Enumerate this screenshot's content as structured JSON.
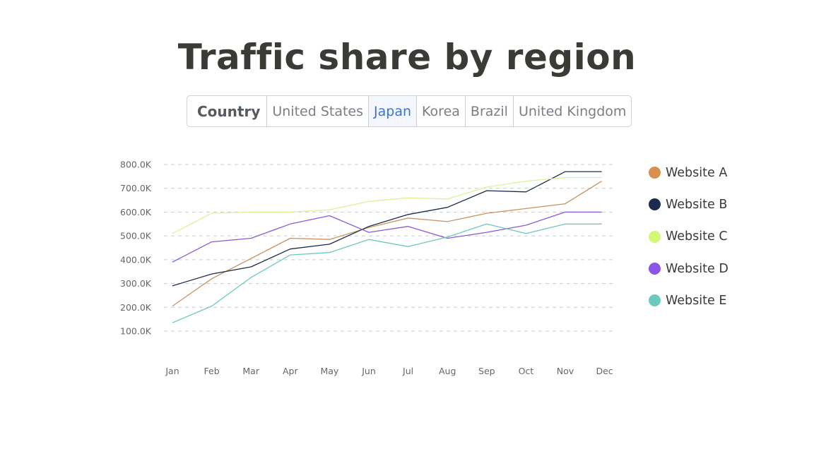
{
  "page": {
    "title": "Traffic share by region",
    "tabs": [
      {
        "label": "Country",
        "kind": "header"
      },
      {
        "label": "United States"
      },
      {
        "label": "Japan",
        "active": true
      },
      {
        "label": "Korea"
      },
      {
        "label": "Brazil"
      },
      {
        "label": "United Kingdom"
      }
    ]
  },
  "chart_data": {
    "type": "line",
    "categories": [
      "Jan",
      "Feb",
      "Mar",
      "Apr",
      "May",
      "Jun",
      "Jul",
      "Aug",
      "Sep",
      "Oct",
      "Nov",
      "Dec"
    ],
    "ylim": [
      100000,
      800000
    ],
    "yticks": [
      800000,
      700000,
      600000,
      500000,
      400000,
      300000,
      200000,
      100000
    ],
    "ytick_labels": [
      "800.0K",
      "700.0K",
      "600.0K",
      "500.0K",
      "400.0K",
      "300.0K",
      "200.0K",
      "100.0K"
    ],
    "grid": true,
    "legend_position": "right",
    "series": [
      {
        "name": "Website A",
        "color": "#d98f4e",
        "line_color": "#c8915f",
        "values": [
          205000,
          320000,
          405000,
          490000,
          485000,
          535000,
          575000,
          560000,
          595000,
          615000,
          635000,
          730000
        ]
      },
      {
        "name": "Website B",
        "color": "#1d2b4a",
        "line_color": "#1d2b4a",
        "values": [
          290000,
          340000,
          370000,
          445000,
          465000,
          540000,
          590000,
          620000,
          690000,
          685000,
          770000,
          770000
        ]
      },
      {
        "name": "Website C",
        "color": "#d4f77a",
        "line_color": "#d9f39a",
        "values": [
          510000,
          595000,
          600000,
          600000,
          610000,
          645000,
          660000,
          655000,
          705000,
          730000,
          745000,
          745000
        ]
      },
      {
        "name": "Website D",
        "color": "#8b55e8",
        "line_color": "#8a5ad6",
        "values": [
          390000,
          475000,
          490000,
          550000,
          585000,
          515000,
          540000,
          490000,
          515000,
          545000,
          600000,
          600000
        ]
      },
      {
        "name": "Website E",
        "color": "#6cc9bd",
        "line_color": "#6cc9bd",
        "values": [
          135000,
          205000,
          325000,
          420000,
          430000,
          485000,
          455000,
          495000,
          550000,
          510000,
          550000,
          550000
        ]
      }
    ]
  }
}
